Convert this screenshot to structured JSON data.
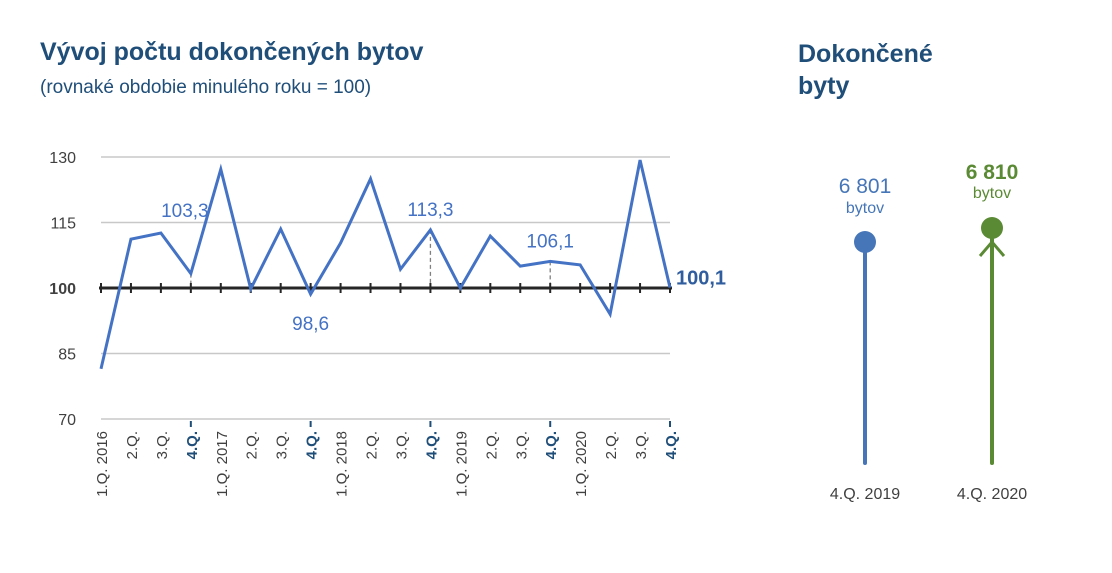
{
  "title": "Vývoj počtu dokončených bytov",
  "subtitle": "(rovnaké obdobie minulého roku = 100)",
  "right_title_line1": "Dokončené",
  "right_title_line2": "byty",
  "chart_data": [
    {
      "type": "line",
      "title": "Vývoj počtu dokončených bytov",
      "subtitle": "(rovnaké obdobie minulého roku = 100)",
      "categories": [
        "1.Q. 2016",
        "2.Q.",
        "3.Q.",
        "4.Q.",
        "1.Q. 2017",
        "2.Q.",
        "3.Q.",
        "4.Q.",
        "1.Q. 2018",
        "2.Q.",
        "3.Q.",
        "4.Q.",
        "1.Q. 2019",
        "2.Q.",
        "3.Q.",
        "4.Q.",
        "1.Q. 2020",
        "2.Q.",
        "3.Q.",
        "4.Q."
      ],
      "bold_categories": [
        3,
        7,
        11,
        15,
        19
      ],
      "values": [
        81.5,
        111.2,
        112.6,
        103.3,
        127.2,
        99.8,
        113.5,
        98.6,
        110.3,
        125.0,
        104.3,
        113.3,
        100.0,
        111.9,
        105.0,
        106.1,
        105.3,
        94.0,
        129.3,
        100.1
      ],
      "data_labels": [
        {
          "index": 3,
          "text": "103,3",
          "pos": "above",
          "dashed": true
        },
        {
          "index": 7,
          "text": "98,6",
          "pos": "below",
          "dashed": false
        },
        {
          "index": 11,
          "text": "113,3",
          "pos": "above",
          "dashed": true
        },
        {
          "index": 15,
          "text": "106,1",
          "pos": "above",
          "dashed": true
        },
        {
          "index": 19,
          "text": "100,1",
          "pos": "right",
          "bold": true
        }
      ],
      "yticks": [
        70,
        85,
        100,
        115,
        130
      ],
      "ytick_labels": [
        "70",
        "85",
        "100",
        "115",
        "130"
      ],
      "ylim": [
        70,
        130
      ],
      "baseline": 100,
      "grid": true,
      "line_color": "#4472c4"
    },
    {
      "type": "lollipop",
      "title": "Dokončené byty",
      "items": [
        {
          "label": "4.Q. 2019",
          "value": 6801,
          "value_text": "6 801",
          "unit": "bytov",
          "color": "#4676b8"
        },
        {
          "label": "4.Q. 2020",
          "value": 6810,
          "value_text": "6 810",
          "unit": "bytov",
          "color": "#5b8a34"
        }
      ]
    }
  ]
}
